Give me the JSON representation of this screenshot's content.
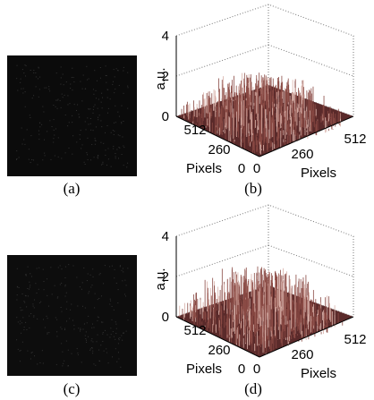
{
  "panels": [
    {
      "label": "(a)"
    },
    {
      "label": "(b)",
      "zlabel": "a.u.",
      "zticks": [
        0,
        2,
        4
      ],
      "left_ticks": [
        512,
        260,
        0
      ],
      "right_ticks": [
        0,
        260,
        512
      ],
      "left_label": "Pixels",
      "right_label": "Pixels"
    },
    {
      "label": "(c)"
    },
    {
      "label": "(d)",
      "zlabel": "a.u.",
      "zticks": [
        0,
        2,
        4
      ],
      "left_ticks": [
        512,
        260,
        0
      ],
      "right_ticks": [
        0,
        260,
        512
      ],
      "left_label": "Pixels",
      "right_label": "Pixels"
    }
  ]
}
